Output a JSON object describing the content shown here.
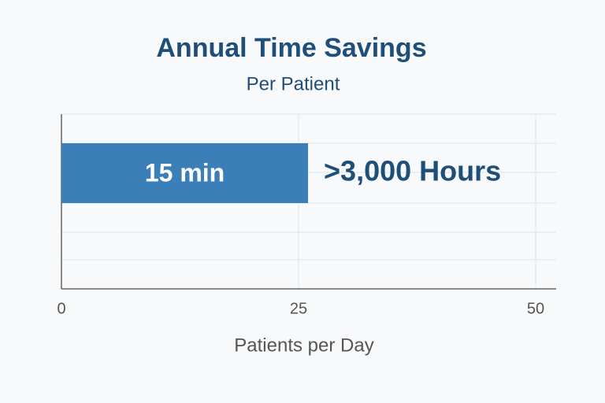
{
  "chart_data": {
    "type": "bar",
    "orientation": "horizontal",
    "title": "Annual Time Savings",
    "subtitle": "Per Patient",
    "x_label": "Patients per Day",
    "values": [
      26
    ],
    "color": "#3a7fb8",
    "annotations": [
      "15 min",
      ">3,000 Hours"
    ],
    "xlim": [
      0,
      50
    ],
    "xticks": [
      0,
      25,
      50
    ],
    "grid": true
  }
}
